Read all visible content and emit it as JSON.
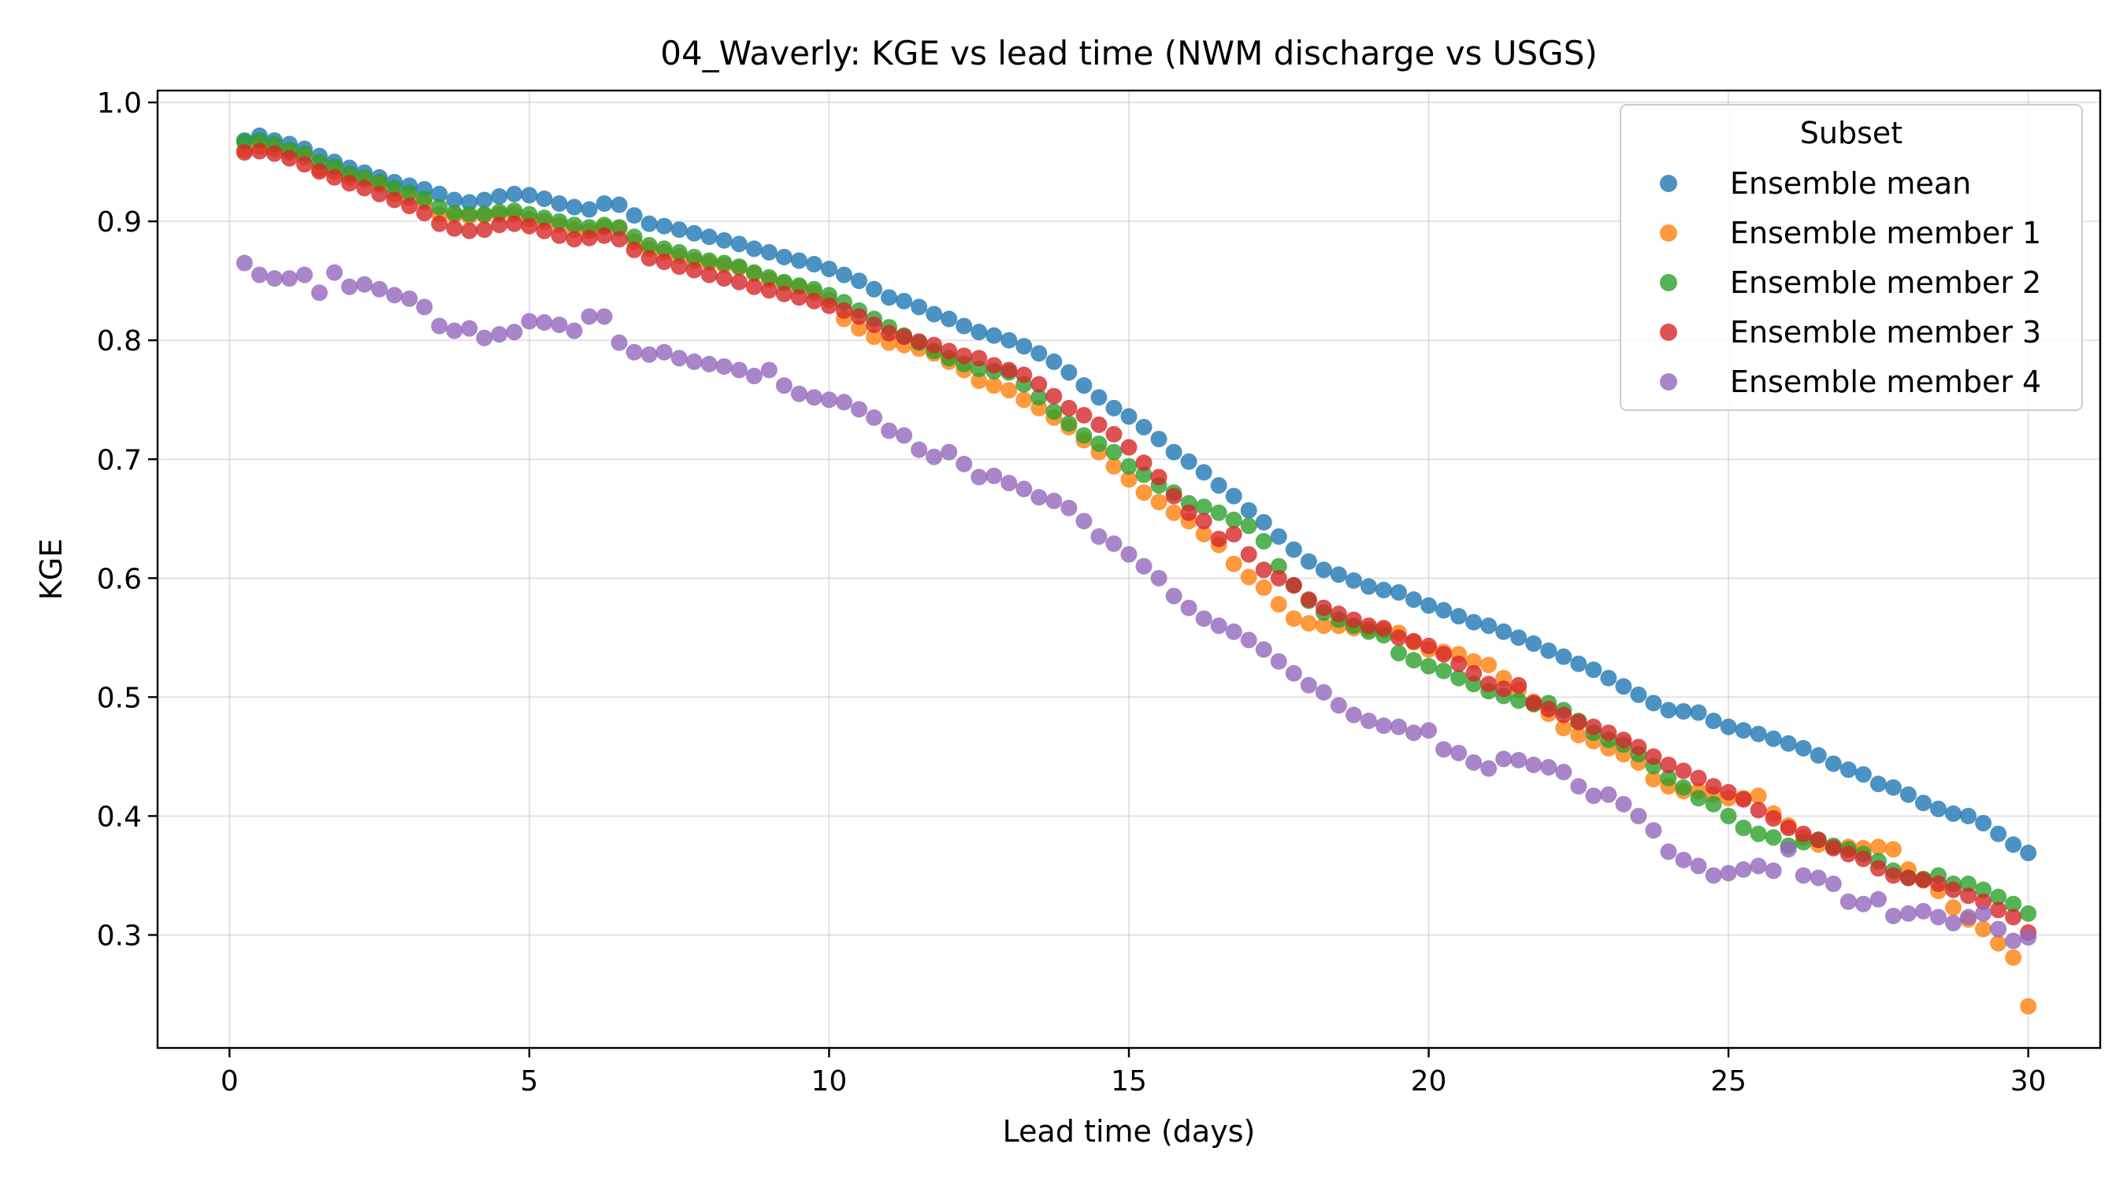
{
  "chart_data": {
    "type": "scatter",
    "title": "04_Waverly: KGE vs lead time (NWM discharge vs USGS)",
    "xlabel": "Lead time (days)",
    "ylabel": "KGE",
    "xlim": [
      -1.2,
      31.2
    ],
    "ylim": [
      0.205,
      1.01
    ],
    "x_ticks": [
      0,
      5,
      10,
      15,
      20,
      25,
      30
    ],
    "y_ticks": [
      0.3,
      0.4,
      0.5,
      0.6,
      0.7,
      0.8,
      0.9,
      1.0
    ],
    "y_tick_labels": [
      "0.3",
      "0.4",
      "0.5",
      "0.6",
      "0.7",
      "0.8",
      "0.9",
      "1.0"
    ],
    "grid": true,
    "legend": {
      "title": "Subset",
      "placement": "top-right"
    },
    "x": [
      0.25,
      0.5,
      0.75,
      1.0,
      1.25,
      1.5,
      1.75,
      2.0,
      2.25,
      2.5,
      2.75,
      3.0,
      3.25,
      3.5,
      3.75,
      4.0,
      4.25,
      4.5,
      4.75,
      5.0,
      5.25,
      5.5,
      5.75,
      6.0,
      6.25,
      6.5,
      6.75,
      7.0,
      7.25,
      7.5,
      7.75,
      8.0,
      8.25,
      8.5,
      8.75,
      9.0,
      9.25,
      9.5,
      9.75,
      10.0,
      10.25,
      10.5,
      10.75,
      11.0,
      11.25,
      11.5,
      11.75,
      12.0,
      12.25,
      12.5,
      12.75,
      13.0,
      13.25,
      13.5,
      13.75,
      14.0,
      14.25,
      14.5,
      14.75,
      15.0,
      15.25,
      15.5,
      15.75,
      16.0,
      16.25,
      16.5,
      16.75,
      17.0,
      17.25,
      17.5,
      17.75,
      18.0,
      18.25,
      18.5,
      18.75,
      19.0,
      19.25,
      19.5,
      19.75,
      20.0,
      20.25,
      20.5,
      20.75,
      21.0,
      21.25,
      21.5,
      21.75,
      22.0,
      22.25,
      22.5,
      22.75,
      23.0,
      23.25,
      23.5,
      23.75,
      24.0,
      24.25,
      24.5,
      24.75,
      25.0,
      25.25,
      25.5,
      25.75,
      26.0,
      26.25,
      26.5,
      26.75,
      27.0,
      27.25,
      27.5,
      27.75,
      28.0,
      28.25,
      28.5,
      28.75,
      29.0,
      29.25,
      29.5,
      29.75,
      30.0
    ],
    "series": [
      {
        "name": "Ensemble mean",
        "color": "#1f77b4",
        "values": [
          0.968,
          0.972,
          0.968,
          0.965,
          0.961,
          0.955,
          0.95,
          0.945,
          0.941,
          0.937,
          0.933,
          0.93,
          0.927,
          0.923,
          0.918,
          0.916,
          0.918,
          0.921,
          0.923,
          0.922,
          0.919,
          0.915,
          0.912,
          0.91,
          0.915,
          0.914,
          0.905,
          0.898,
          0.896,
          0.893,
          0.89,
          0.887,
          0.884,
          0.881,
          0.877,
          0.874,
          0.87,
          0.867,
          0.864,
          0.86,
          0.855,
          0.85,
          0.843,
          0.836,
          0.833,
          0.828,
          0.822,
          0.818,
          0.812,
          0.807,
          0.804,
          0.8,
          0.795,
          0.789,
          0.782,
          0.773,
          0.762,
          0.752,
          0.743,
          0.736,
          0.727,
          0.717,
          0.706,
          0.698,
          0.689,
          0.678,
          0.669,
          0.657,
          0.647,
          0.635,
          0.624,
          0.614,
          0.607,
          0.603,
          0.598,
          0.593,
          0.59,
          0.588,
          0.582,
          0.577,
          0.573,
          0.568,
          0.563,
          0.56,
          0.555,
          0.55,
          0.545,
          0.539,
          0.534,
          0.528,
          0.523,
          0.516,
          0.509,
          0.502,
          0.495,
          0.489,
          0.488,
          0.487,
          0.48,
          0.475,
          0.472,
          0.469,
          0.465,
          0.461,
          0.457,
          0.451,
          0.444,
          0.439,
          0.435,
          0.427,
          0.424,
          0.418,
          0.411,
          0.406,
          0.402,
          0.4,
          0.394,
          0.385,
          0.376,
          0.369
        ]
      },
      {
        "name": "Ensemble member 1",
        "color": "#ff7f0e",
        "values": [
          0.96,
          0.963,
          0.961,
          0.958,
          0.954,
          0.944,
          0.942,
          0.937,
          0.935,
          0.931,
          0.923,
          0.92,
          0.916,
          0.906,
          0.905,
          0.904,
          0.905,
          0.906,
          0.906,
          0.902,
          0.9,
          0.897,
          0.893,
          0.892,
          0.895,
          0.894,
          0.883,
          0.877,
          0.874,
          0.871,
          0.867,
          0.865,
          0.863,
          0.861,
          0.856,
          0.851,
          0.848,
          0.845,
          0.84,
          0.834,
          0.818,
          0.81,
          0.803,
          0.798,
          0.796,
          0.793,
          0.789,
          0.782,
          0.775,
          0.766,
          0.762,
          0.758,
          0.75,
          0.743,
          0.735,
          0.727,
          0.716,
          0.706,
          0.694,
          0.683,
          0.672,
          0.664,
          0.655,
          0.648,
          0.637,
          0.628,
          0.612,
          0.601,
          0.592,
          0.578,
          0.566,
          0.562,
          0.56,
          0.56,
          0.558,
          0.557,
          0.556,
          0.554,
          0.546,
          0.54,
          0.538,
          0.536,
          0.53,
          0.527,
          0.516,
          0.506,
          0.496,
          0.486,
          0.474,
          0.468,
          0.463,
          0.457,
          0.452,
          0.445,
          0.431,
          0.425,
          0.421,
          0.421,
          0.418,
          0.415,
          0.415,
          0.417,
          0.402,
          0.392,
          0.382,
          0.376,
          0.374,
          0.374,
          0.373,
          0.374,
          0.372,
          0.355,
          0.347,
          0.337,
          0.323,
          0.313,
          0.305,
          0.293,
          0.281,
          0.24
        ]
      },
      {
        "name": "Ensemble member 2",
        "color": "#2ca02c",
        "values": [
          0.967,
          0.968,
          0.965,
          0.96,
          0.957,
          0.95,
          0.946,
          0.94,
          0.937,
          0.933,
          0.928,
          0.924,
          0.919,
          0.912,
          0.907,
          0.906,
          0.906,
          0.908,
          0.909,
          0.906,
          0.903,
          0.9,
          0.897,
          0.895,
          0.897,
          0.895,
          0.887,
          0.88,
          0.877,
          0.874,
          0.87,
          0.867,
          0.865,
          0.862,
          0.857,
          0.853,
          0.849,
          0.846,
          0.843,
          0.838,
          0.832,
          0.825,
          0.818,
          0.811,
          0.804,
          0.798,
          0.791,
          0.785,
          0.78,
          0.776,
          0.774,
          0.773,
          0.763,
          0.752,
          0.74,
          0.73,
          0.72,
          0.713,
          0.706,
          0.694,
          0.687,
          0.678,
          0.672,
          0.663,
          0.66,
          0.655,
          0.649,
          0.644,
          0.631,
          0.61,
          0.594,
          0.581,
          0.571,
          0.565,
          0.56,
          0.555,
          0.552,
          0.537,
          0.531,
          0.526,
          0.522,
          0.516,
          0.511,
          0.505,
          0.501,
          0.497,
          0.494,
          0.495,
          0.489,
          0.48,
          0.47,
          0.464,
          0.46,
          0.452,
          0.442,
          0.432,
          0.424,
          0.415,
          0.41,
          0.4,
          0.39,
          0.385,
          0.382,
          0.375,
          0.378,
          0.38,
          0.375,
          0.372,
          0.368,
          0.362,
          0.354,
          0.348,
          0.347,
          0.35,
          0.343,
          0.343,
          0.338,
          0.332,
          0.326,
          0.318
        ]
      },
      {
        "name": "Ensemble member 3",
        "color": "#d62728",
        "values": [
          0.958,
          0.959,
          0.957,
          0.953,
          0.948,
          0.942,
          0.937,
          0.932,
          0.928,
          0.923,
          0.918,
          0.913,
          0.907,
          0.898,
          0.894,
          0.892,
          0.893,
          0.897,
          0.898,
          0.896,
          0.892,
          0.888,
          0.885,
          0.886,
          0.888,
          0.885,
          0.876,
          0.869,
          0.866,
          0.862,
          0.859,
          0.855,
          0.852,
          0.849,
          0.845,
          0.842,
          0.839,
          0.836,
          0.833,
          0.829,
          0.825,
          0.82,
          0.813,
          0.806,
          0.803,
          0.799,
          0.796,
          0.791,
          0.787,
          0.785,
          0.779,
          0.775,
          0.771,
          0.763,
          0.753,
          0.743,
          0.737,
          0.729,
          0.721,
          0.71,
          0.697,
          0.685,
          0.669,
          0.655,
          0.648,
          0.633,
          0.637,
          0.62,
          0.607,
          0.6,
          0.594,
          0.582,
          0.575,
          0.57,
          0.565,
          0.56,
          0.558,
          0.55,
          0.547,
          0.543,
          0.536,
          0.528,
          0.52,
          0.511,
          0.507,
          0.51,
          0.495,
          0.49,
          0.485,
          0.479,
          0.475,
          0.47,
          0.464,
          0.458,
          0.45,
          0.443,
          0.438,
          0.432,
          0.425,
          0.42,
          0.414,
          0.405,
          0.398,
          0.39,
          0.385,
          0.38,
          0.373,
          0.368,
          0.364,
          0.356,
          0.35,
          0.348,
          0.346,
          0.343,
          0.338,
          0.333,
          0.328,
          0.321,
          0.315,
          0.302
        ]
      },
      {
        "name": "Ensemble member 4",
        "color": "#9467bd",
        "values": [
          0.865,
          0.855,
          0.852,
          0.852,
          0.855,
          0.84,
          0.857,
          0.845,
          0.847,
          0.843,
          0.838,
          0.835,
          0.828,
          0.812,
          0.808,
          0.81,
          0.802,
          0.805,
          0.807,
          0.816,
          0.815,
          0.813,
          0.808,
          0.82,
          0.82,
          0.798,
          0.79,
          0.788,
          0.79,
          0.785,
          0.782,
          0.78,
          0.778,
          0.775,
          0.77,
          0.775,
          0.762,
          0.755,
          0.752,
          0.75,
          0.748,
          0.742,
          0.735,
          0.724,
          0.72,
          0.708,
          0.702,
          0.706,
          0.696,
          0.685,
          0.686,
          0.68,
          0.675,
          0.668,
          0.665,
          0.659,
          0.648,
          0.635,
          0.629,
          0.62,
          0.61,
          0.6,
          0.585,
          0.575,
          0.566,
          0.56,
          0.555,
          0.548,
          0.54,
          0.53,
          0.52,
          0.51,
          0.504,
          0.493,
          0.485,
          0.48,
          0.476,
          0.475,
          0.47,
          0.472,
          0.456,
          0.453,
          0.445,
          0.44,
          0.448,
          0.447,
          0.443,
          0.441,
          0.437,
          0.425,
          0.417,
          0.418,
          0.41,
          0.4,
          0.388,
          0.37,
          0.363,
          0.358,
          0.35,
          0.352,
          0.355,
          0.358,
          0.354,
          0.372,
          0.35,
          0.348,
          0.343,
          0.328,
          0.326,
          0.33,
          0.316,
          0.318,
          0.32,
          0.315,
          0.31,
          0.315,
          0.318,
          0.305,
          0.295,
          0.298
        ]
      }
    ]
  }
}
